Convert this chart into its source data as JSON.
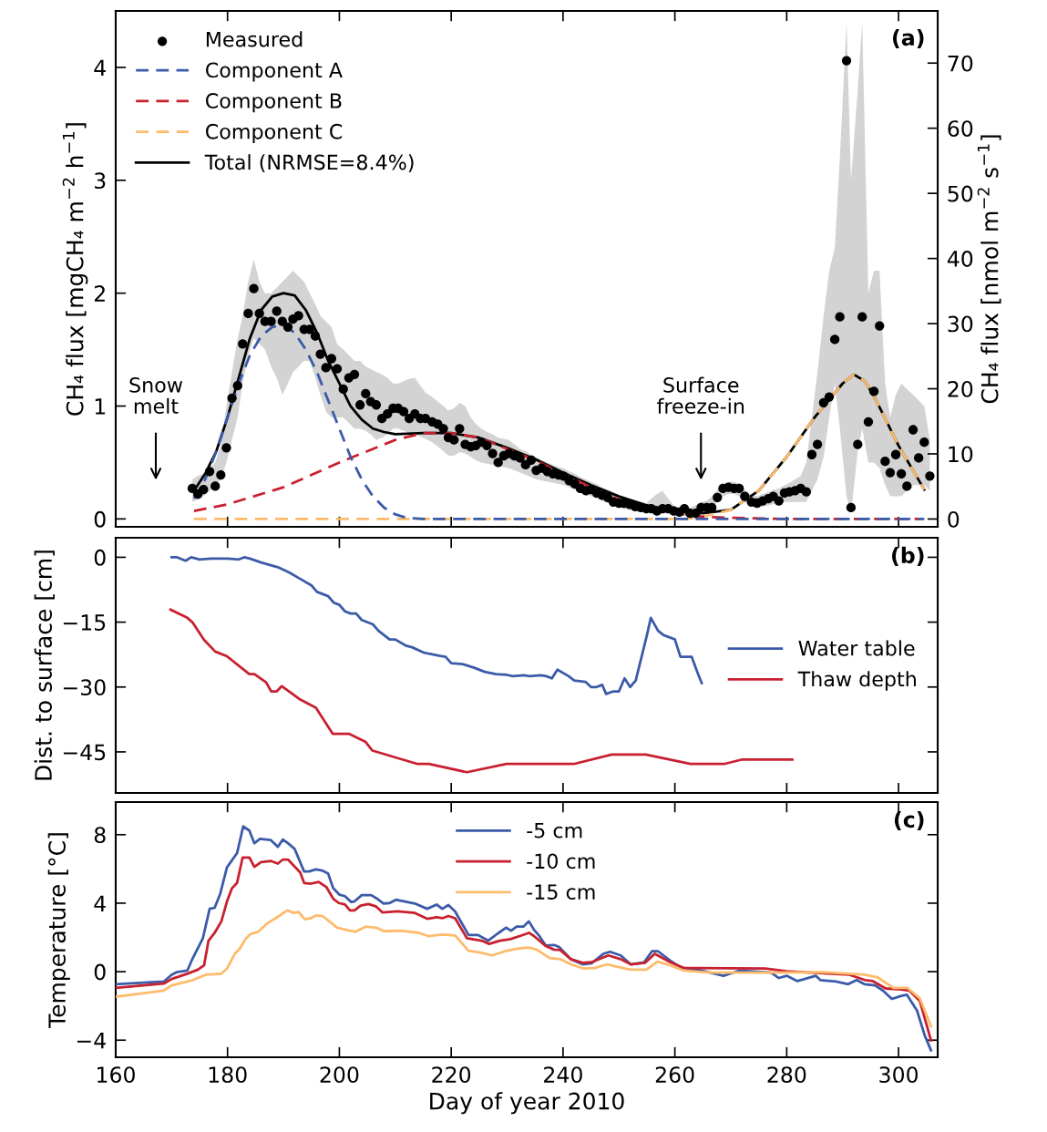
{
  "chart_data": [
    {
      "type": "line",
      "ylabel": "CH₄ flux [mgCH₄ m$^{−2}$ h$^{−1}$]",
      "y2label": "CH₄ flux [nmol m$^{−2}$ s$^{−1}$]",
      "xlim": [
        160,
        307
      ],
      "xticks": [
        160,
        180,
        200,
        220,
        240,
        260,
        280,
        300
      ],
      "ylim": [
        -0.07,
        4.5
      ],
      "yticks": [
        0,
        1,
        2,
        3,
        4
      ],
      "y2lim": [
        -1.2,
        78
      ],
      "y2ticks": [
        0,
        10,
        20,
        30,
        40,
        50,
        60,
        70
      ],
      "tick_labels": "y",
      "legend": "top left",
      "annotations": [
        "Snow\nmelt",
        "Surface\nfreeze-in",
        "(a)"
      ],
      "series": [
        {
          "name": "Measured",
          "type": "scatter",
          "marker": "circle",
          "color": "#000000",
          "x": [
            173.7,
            174.7,
            175.7,
            176.8,
            177.8,
            178.8,
            179.8,
            180.8,
            181.8,
            182.7,
            183.7,
            184.7,
            185.7,
            186.7,
            187.8,
            188.8,
            189.8,
            190.8,
            191.7,
            192.7,
            193.7,
            194.7,
            195.7,
            196.6,
            197.6,
            198.6,
            199.6,
            200.7,
            201.7,
            202.7,
            203.7,
            204.7,
            205.6,
            206.6,
            207.6,
            208.6,
            209.6,
            210.5,
            211.5,
            212.5,
            213.5,
            214.5,
            215.4,
            216.6,
            217.6,
            218.6,
            219.5,
            220.5,
            221.5,
            222.5,
            223.5,
            224.4,
            225.4,
            226.4,
            227.4,
            228.4,
            229.4,
            230.3,
            231.3,
            232.3,
            233.3,
            234.3,
            235.2,
            236.2,
            237.2,
            238.2,
            239.2,
            240.1,
            241.1,
            242.1,
            243.1,
            244.1,
            245.0,
            246.0,
            247.0,
            248.0,
            249.0,
            250.0,
            250.9,
            251.9,
            252.9,
            253.9,
            254.9,
            255.8,
            256.8,
            257.8,
            258.8,
            259.8,
            260.8,
            261.7,
            262.7,
            263.7,
            264.7,
            265.7,
            266.6,
            267.6,
            268.6,
            269.6,
            270.6,
            271.5,
            272.5,
            273.7,
            274.7,
            275.7,
            276.7,
            277.6,
            278.6,
            279.6,
            280.5,
            281.5,
            282.5,
            283.5,
            284.5,
            285.5,
            286.6,
            287.6,
            288.6,
            289.5,
            290.7,
            291.5,
            292.7,
            293.5,
            294.6,
            295.6,
            296.6,
            297.6,
            298.5,
            299.5,
            300.5,
            301.5,
            302.6,
            303.6,
            304.6,
            305.6
          ],
          "values": [
            0.27,
            0.22,
            0.26,
            0.42,
            0.29,
            0.39,
            0.63,
            1.07,
            1.18,
            1.55,
            1.82,
            2.04,
            1.82,
            1.75,
            1.75,
            1.84,
            1.75,
            1.7,
            1.77,
            1.8,
            1.68,
            1.68,
            1.62,
            1.46,
            1.34,
            1.42,
            1.33,
            1.15,
            1.25,
            1.28,
            1.01,
            1.11,
            1.04,
            1.01,
            0.89,
            0.93,
            0.98,
            0.98,
            0.95,
            0.89,
            0.93,
            0.89,
            0.89,
            0.86,
            0.84,
            0.8,
            0.72,
            0.7,
            0.8,
            0.66,
            0.64,
            0.65,
            0.68,
            0.65,
            0.58,
            0.5,
            0.56,
            0.58,
            0.56,
            0.54,
            0.48,
            0.52,
            0.43,
            0.45,
            0.42,
            0.4,
            0.39,
            0.38,
            0.34,
            0.31,
            0.27,
            0.25,
            0.26,
            0.23,
            0.21,
            0.19,
            0.15,
            0.14,
            0.14,
            0.13,
            0.11,
            0.1,
            0.09,
            0.09,
            0.07,
            0.09,
            0.09,
            0.07,
            0.06,
            0.09,
            0.05,
            0.05,
            0.1,
            0.1,
            0.1,
            0.19,
            0.27,
            0.28,
            0.27,
            0.27,
            0.2,
            0.15,
            0.14,
            0.16,
            0.18,
            0.2,
            0.16,
            0.23,
            0.24,
            0.25,
            0.27,
            0.24,
            0.57,
            0.66,
            1.03,
            1.08,
            1.59,
            1.79,
            4.06,
            0.1,
            0.66,
            1.79,
            0.86,
            1.13,
            1.71,
            0.51,
            0.41,
            0.57,
            0.4,
            0.29,
            0.79,
            0.54,
            0.68,
            0.38
          ],
          "lower": [
            0.15,
            0.17,
            0.2,
            0.25,
            0.3,
            0.35,
            0.5,
            0.7,
            0.9,
            1.2,
            1.45,
            1.6,
            1.55,
            1.5,
            1.35,
            1.25,
            1.1,
            1.2,
            1.3,
            1.35,
            1.4,
            1.4,
            1.25,
            1.1,
            0.95,
            0.9,
            0.9,
            0.9,
            0.85,
            0.8,
            0.8,
            0.78,
            0.75,
            0.7,
            0.72,
            0.75,
            0.8,
            0.8,
            0.78,
            0.76,
            0.75,
            0.73,
            0.71,
            0.68,
            0.64,
            0.6,
            0.56,
            0.56,
            0.59,
            0.58,
            0.55,
            0.52,
            0.5,
            0.49,
            0.48,
            0.47,
            0.46,
            0.45,
            0.43,
            0.41,
            0.39,
            0.37,
            0.35,
            0.34,
            0.33,
            0.32,
            0.31,
            0.3,
            0.28,
            0.26,
            0.24,
            0.22,
            0.2,
            0.18,
            0.16,
            0.14,
            0.12,
            0.1,
            0.09,
            0.08,
            0.07,
            0.07,
            0.06,
            0.06,
            0.05,
            0.05,
            0.05,
            0.04,
            0.04,
            0.03,
            0.03,
            0.04,
            0.06,
            0.07,
            0.1,
            0.15,
            0.2,
            0.22,
            0.22,
            0.2,
            0.15,
            0.11,
            0.1,
            0.11,
            0.12,
            0.13,
            0.14,
            0.15,
            0.15,
            0.15,
            0.15,
            0.15,
            0.25,
            0.35,
            0.55,
            0.9,
            1.2,
            0.8,
            0.2,
            0.05,
            0.6,
            0.8,
            0.5,
            0.5,
            0.45,
            0.3,
            0.2,
            0.2,
            0.2,
            0.25,
            0.3,
            0.3,
            0.3,
            0.25
          ],
          "upper": [
            0.35,
            0.38,
            0.4,
            0.45,
            0.5,
            0.65,
            1.0,
            1.3,
            1.6,
            1.8,
            2.1,
            2.3,
            2.1,
            2.0,
            2.0,
            2.05,
            2.1,
            2.15,
            2.2,
            2.15,
            2.1,
            2.0,
            1.9,
            1.8,
            1.75,
            1.7,
            1.55,
            1.5,
            1.45,
            1.4,
            1.4,
            1.35,
            1.33,
            1.3,
            1.28,
            1.25,
            1.2,
            1.2,
            1.22,
            1.24,
            1.25,
            1.18,
            1.12,
            1.08,
            1.04,
            1.0,
            0.96,
            0.98,
            1.03,
            1.0,
            0.9,
            0.84,
            0.8,
            0.77,
            0.75,
            0.72,
            0.71,
            0.7,
            0.66,
            0.62,
            0.6,
            0.57,
            0.55,
            0.52,
            0.5,
            0.48,
            0.46,
            0.45,
            0.42,
            0.4,
            0.37,
            0.35,
            0.33,
            0.31,
            0.28,
            0.26,
            0.23,
            0.2,
            0.19,
            0.17,
            0.16,
            0.15,
            0.14,
            0.18,
            0.22,
            0.25,
            0.18,
            0.12,
            0.1,
            0.1,
            0.1,
            0.12,
            0.15,
            0.16,
            0.2,
            0.26,
            0.31,
            0.33,
            0.33,
            0.31,
            0.26,
            0.21,
            0.2,
            0.22,
            0.24,
            0.26,
            0.27,
            0.3,
            0.32,
            0.35,
            0.38,
            0.5,
            0.9,
            1.3,
            1.8,
            2.2,
            2.4,
            3.2,
            4.4,
            3.0,
            3.8,
            4.4,
            2.0,
            2.2,
            2.2,
            1.2,
            0.9,
            1.1,
            1.2,
            1.15,
            1.1,
            1.05,
            1.0,
            0.7
          ]
        },
        {
          "name": "Component A",
          "type": "line",
          "line_style": "dashed",
          "color": "#3b5ba8",
          "x": [
            174,
            176,
            178,
            180,
            182,
            184,
            186,
            188,
            190,
            192,
            194,
            196,
            198,
            200,
            202,
            204,
            206,
            208,
            210,
            212,
            215,
            250,
            304.6
          ],
          "values": [
            0.18,
            0.35,
            0.6,
            0.9,
            1.2,
            1.45,
            1.62,
            1.7,
            1.72,
            1.65,
            1.5,
            1.3,
            1.05,
            0.8,
            0.55,
            0.35,
            0.2,
            0.1,
            0.04,
            0.01,
            0,
            0,
            0
          ]
        },
        {
          "name": "Component B",
          "type": "line",
          "line_style": "dashed",
          "color": "#c8202f",
          "x": [
            174,
            180,
            190,
            200,
            210,
            215,
            220,
            225,
            230,
            235,
            240,
            245,
            250,
            255,
            260,
            265,
            270,
            280,
            304
          ],
          "values": [
            0.07,
            0.13,
            0.28,
            0.5,
            0.7,
            0.76,
            0.76,
            0.72,
            0.62,
            0.52,
            0.4,
            0.28,
            0.17,
            0.1,
            0.05,
            0.02,
            0.01,
            0,
            0
          ]
        },
        {
          "name": "Component C",
          "type": "line",
          "line_style": "dashed",
          "color": "#fdbb6b",
          "x": [
            174,
            262,
            265,
            270,
            275,
            280,
            285,
            290,
            292,
            294,
            296,
            298,
            300,
            302,
            304.6
          ],
          "values": [
            0,
            0,
            0.02,
            0.08,
            0.25,
            0.55,
            0.9,
            1.2,
            1.28,
            1.22,
            1.05,
            0.85,
            0.65,
            0.48,
            0.26
          ]
        },
        {
          "name": "Total (NRMSE=8.4%)",
          "type": "line",
          "line_style": "solid",
          "color": "#000000",
          "x": [
            174,
            176,
            178,
            180,
            182,
            184,
            186,
            188,
            190,
            192,
            194,
            196,
            198,
            200,
            202,
            204,
            206,
            208,
            210,
            215,
            220,
            225,
            230,
            235,
            240,
            245,
            250,
            255,
            260,
            265,
            270,
            275,
            280,
            285,
            290,
            292,
            294,
            296,
            298,
            300,
            302,
            304.6
          ],
          "values": [
            0.25,
            0.4,
            0.6,
            0.9,
            1.25,
            1.6,
            1.85,
            1.97,
            2.0,
            1.98,
            1.85,
            1.65,
            1.4,
            1.2,
            1.0,
            0.88,
            0.8,
            0.77,
            0.75,
            0.76,
            0.76,
            0.72,
            0.63,
            0.53,
            0.41,
            0.3,
            0.2,
            0.12,
            0.07,
            0.05,
            0.08,
            0.25,
            0.55,
            0.9,
            1.2,
            1.28,
            1.22,
            1.05,
            0.85,
            0.65,
            0.48,
            0.26
          ]
        }
      ]
    },
    {
      "type": "line",
      "ylabel": "Dist. to surface [cm]",
      "xlim": [
        160,
        307
      ],
      "xticks": [
        160,
        180,
        200,
        220,
        240,
        260,
        280,
        300
      ],
      "ylim": [
        -54.5,
        4.5
      ],
      "yticks": [
        0,
        {
          "value": -15,
          "label": "−15"
        },
        {
          "value": -30,
          "label": "−30"
        },
        {
          "value": -45,
          "label": "−45"
        }
      ],
      "tick_labels": "y",
      "legend": "right",
      "annotations": [
        "(b)"
      ],
      "series": [
        {
          "name": "Water table",
          "color": "#3b5ba8",
          "x": [
            170,
            171,
            172.5,
            173.5,
            175,
            177,
            180,
            182,
            183,
            184,
            186,
            189,
            191,
            193,
            195,
            196,
            198,
            199,
            200,
            201,
            202,
            203,
            204,
            206,
            207,
            209,
            210,
            212,
            213,
            215,
            216,
            218,
            219,
            220,
            222,
            224,
            226,
            228,
            230,
            231,
            233,
            234,
            236,
            237,
            238,
            239,
            241,
            242,
            244,
            245,
            246,
            247,
            247.7,
            249,
            250,
            251,
            252,
            253,
            255,
            255.7,
            257,
            258,
            260,
            261,
            263,
            264,
            264.8
          ],
          "values": [
            0,
            0,
            -0.8,
            0,
            -0.5,
            -0.3,
            -0.3,
            -0.5,
            0,
            -0.3,
            -1.2,
            -2.3,
            -3.5,
            -5,
            -6.5,
            -8,
            -9,
            -10.5,
            -11,
            -12.5,
            -13,
            -13,
            -14.5,
            -15.5,
            -17,
            -19,
            -19,
            -20.5,
            -20.8,
            -22,
            -22.3,
            -22.8,
            -23,
            -24.5,
            -24.7,
            -25.5,
            -26.5,
            -27,
            -27.2,
            -27.5,
            -27.3,
            -27.5,
            -27.3,
            -27.5,
            -28,
            -26,
            -27.5,
            -28.5,
            -28.8,
            -30,
            -30,
            -29.5,
            -31.6,
            -31,
            -31,
            -28,
            -30,
            -28.5,
            -18,
            -14,
            -17,
            -18,
            -19,
            -23,
            -23,
            -26.5,
            -29.1
          ]
        },
        {
          "name": "Thaw depth",
          "color": "#c8202f",
          "x": [
            169.8,
            172.8,
            173.7,
            175.8,
            177.8,
            179.9,
            183.9,
            184.8,
            186.9,
            187.8,
            188.8,
            189.7,
            193,
            195.8,
            198.8,
            201.7,
            204.7,
            205.9,
            214,
            216,
            222.8,
            229.9,
            241.9,
            248.7,
            254.8,
            262.8,
            268.8,
            271.9,
            281
          ],
          "values": [
            -12.1,
            -14,
            -15,
            -19.1,
            -21.8,
            -22.9,
            -27,
            -27,
            -28.9,
            -31,
            -31,
            -29.8,
            -32.9,
            -34.8,
            -40.8,
            -40.8,
            -42.7,
            -44.7,
            -47.8,
            -47.8,
            -49.7,
            -47.8,
            -47.8,
            -45.6,
            -45.6,
            -47.8,
            -47.8,
            -46.8,
            -46.8
          ]
        }
      ]
    },
    {
      "type": "line",
      "ylabel": "Temperature [°C]",
      "xlabel": "Day of year 2010",
      "xlim": [
        160,
        307
      ],
      "xticks": [
        160,
        180,
        200,
        220,
        240,
        260,
        280,
        300
      ],
      "ylim": [
        -5,
        9.9
      ],
      "yticks": [
        {
          "value": -4,
          "label": "−4"
        },
        0,
        4,
        8
      ],
      "legend": "top center",
      "annotations": [
        "(c)"
      ],
      "series": [
        {
          "name": "-5 cm",
          "color": "#3b5ba8",
          "x": [
            160,
            168.6,
            170,
            170.9,
            172.8,
            173.8,
            175.6,
            176.8,
            177.7,
            178.7,
            179.9,
            181.7,
            182.8,
            183.9,
            184.8,
            185.8,
            187.7,
            189,
            189.9,
            190.8,
            192,
            193.7,
            194.6,
            195.8,
            196.9,
            198,
            198.9,
            200,
            201,
            202.1,
            202.7,
            204,
            205.7,
            206.6,
            207.9,
            209,
            210.1,
            213.5,
            215.7,
            217.4,
            218.4,
            219.5,
            220.7,
            223.1,
            224.8,
            226.6,
            228.2,
            229.8,
            230.7,
            231.7,
            232.9,
            233.9,
            234.8,
            235.7,
            236.9,
            238.4,
            239.3,
            241.4,
            243.5,
            245.1,
            247.2,
            248.4,
            250.3,
            252.1,
            254.5,
            255.9,
            257,
            259.2,
            261.1,
            264.8,
            268.7,
            271.5,
            277.2,
            278.6,
            280,
            281.9,
            285.2,
            286,
            288.8,
            291,
            292.5,
            293.9,
            295.8,
            297.2,
            298.8,
            300.5,
            301.5,
            303.3,
            304.7,
            305.8
          ],
          "values": [
            -0.73,
            -0.58,
            -0.18,
            -0.03,
            0.06,
            0.8,
            1.96,
            3.67,
            3.73,
            4.56,
            6.09,
            6.92,
            8.48,
            8.24,
            7.5,
            7.75,
            7.69,
            7.29,
            7.72,
            7.5,
            7.17,
            5.85,
            5.85,
            5.97,
            5.91,
            5.73,
            4.87,
            4.5,
            4.41,
            4.07,
            4.1,
            4.47,
            4.47,
            4.29,
            3.98,
            4.01,
            4.2,
            3.98,
            3.67,
            3.92,
            3.67,
            3.89,
            3.52,
            2.14,
            2.14,
            1.81,
            2.2,
            2.57,
            2.39,
            2.63,
            2.63,
            2.94,
            2.45,
            2.11,
            1.53,
            1.56,
            1.44,
            0.73,
            0.43,
            0.49,
            1.04,
            1.16,
            0.95,
            0.43,
            0.55,
            1.19,
            1.19,
            0.64,
            0.24,
            0.06,
            -0.24,
            0.06,
            -0.06,
            -0.37,
            -0.24,
            -0.55,
            -0.24,
            -0.49,
            -0.58,
            -0.73,
            -0.49,
            -0.73,
            -0.8,
            -1.1,
            -1.59,
            -1.41,
            -1.35,
            -2.27,
            -3.74,
            -4.59
          ]
        },
        {
          "name": "-10 cm",
          "color": "#c8202f",
          "x": [
            160,
            168.6,
            170,
            172.8,
            174.7,
            175.8,
            176.6,
            177.7,
            178.9,
            179.9,
            180.8,
            181.7,
            182.7,
            183.9,
            184.8,
            186,
            187.8,
            189,
            189.9,
            190.8,
            193,
            193.7,
            194.9,
            196.3,
            197.7,
            198.9,
            199.9,
            201,
            201.9,
            202.7,
            203.8,
            205.2,
            206.6,
            207.7,
            210.4,
            213.5,
            215.7,
            217.4,
            218.4,
            219.5,
            220.7,
            222.8,
            225.4,
            226.8,
            228.7,
            230.6,
            232.5,
            233.9,
            234.8,
            236.9,
            238.4,
            239.5,
            241.4,
            243.5,
            245.1,
            248.1,
            250.3,
            252.1,
            254.7,
            256.4,
            259.2,
            261.6,
            276.2,
            280,
            286.5,
            291.2,
            294,
            295.4,
            297.7,
            300.5,
            301.9,
            303.8,
            305.8
          ],
          "values": [
            -0.95,
            -0.7,
            -0.43,
            -0.12,
            0.12,
            0.37,
            1.81,
            2.27,
            2.94,
            4.1,
            4.87,
            5.18,
            6.67,
            6.67,
            6.12,
            6.4,
            6.46,
            6.31,
            6.55,
            6.55,
            5.79,
            5.18,
            5.14,
            5.24,
            4.93,
            4.26,
            4.01,
            3.92,
            3.58,
            3.58,
            3.86,
            3.95,
            3.8,
            3.46,
            3.52,
            3.43,
            3.09,
            3.18,
            3.12,
            3.25,
            3.12,
            1.96,
            1.81,
            1.62,
            1.81,
            1.9,
            2.11,
            2.27,
            2.08,
            1.5,
            1.29,
            1.26,
            0.73,
            0.52,
            0.55,
            0.95,
            0.73,
            0.43,
            0.52,
            1.04,
            0.55,
            0.21,
            0.18,
            0.03,
            -0.09,
            -0.18,
            -0.49,
            -0.55,
            -0.98,
            -1.04,
            -1.1,
            -1.71,
            -4.01
          ]
        },
        {
          "name": "-15 cm",
          "color": "#fdbb6b",
          "x": [
            160,
            168.6,
            170,
            173.8,
            176.1,
            178.9,
            179.9,
            181.3,
            182.2,
            183.2,
            184.1,
            185.5,
            187.1,
            189.2,
            190.7,
            191.8,
            192.7,
            193.8,
            194.9,
            195.8,
            197,
            198.2,
            199.6,
            201.5,
            202.9,
            204.7,
            206.6,
            208,
            210.8,
            214.1,
            215.9,
            218.4,
            220.7,
            223.1,
            225.4,
            227.3,
            229.6,
            232,
            233.9,
            235.3,
            237.6,
            239.5,
            241.4,
            243.7,
            245.6,
            247.9,
            249.8,
            252.1,
            254.9,
            256.9,
            259.2,
            261.6,
            266.7,
            277.2,
            286.5,
            294,
            296.3,
            299.1,
            301.6,
            303.8,
            305.8
          ],
          "values": [
            -1.47,
            -1.1,
            -0.8,
            -0.49,
            -0.18,
            -0.12,
            0.18,
            1.04,
            1.35,
            1.9,
            2.2,
            2.33,
            2.82,
            3.25,
            3.58,
            3.43,
            3.49,
            3.06,
            3.12,
            3.28,
            3.25,
            2.94,
            2.57,
            2.42,
            2.33,
            2.63,
            2.57,
            2.36,
            2.39,
            2.27,
            2.08,
            2.17,
            2.11,
            1.22,
            1.1,
            0.95,
            1.19,
            1.35,
            1.41,
            1.29,
            0.8,
            0.73,
            0.43,
            0.18,
            0.21,
            0.43,
            0.28,
            0.12,
            0.12,
            0.58,
            0.37,
            0.06,
            -0.06,
            -0.06,
            -0.03,
            -0.18,
            -0.34,
            -0.95,
            -0.95,
            -1.56,
            -3.18
          ]
        }
      ]
    }
  ]
}
